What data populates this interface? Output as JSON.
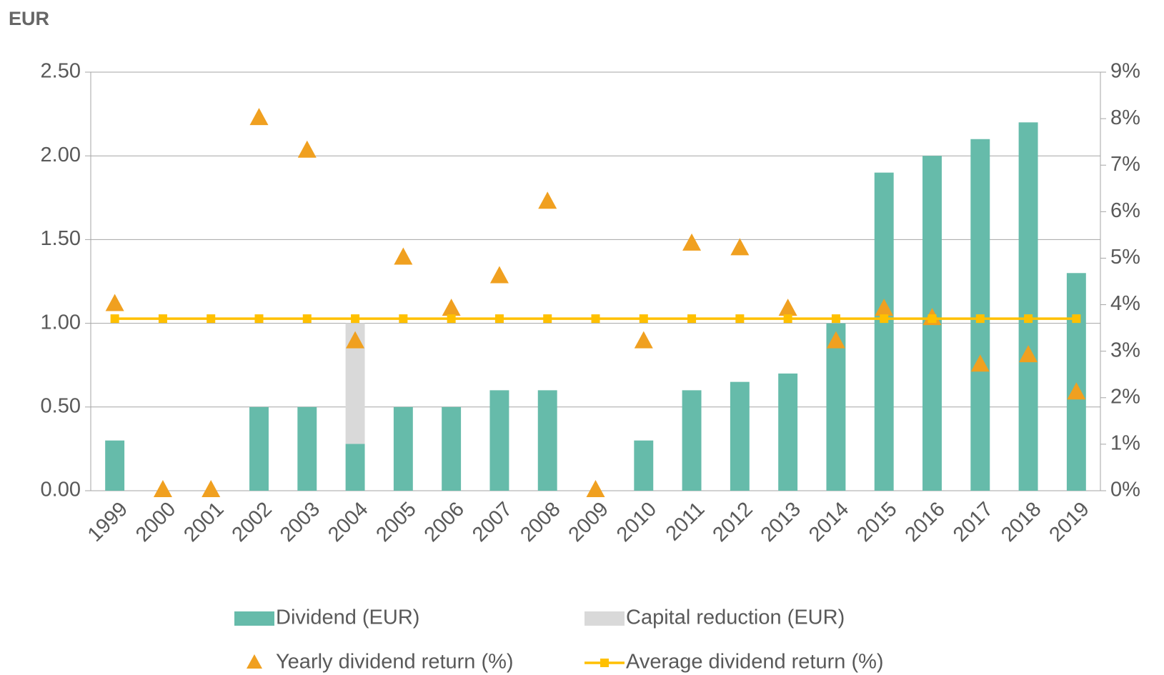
{
  "chart_data": {
    "type": "bar",
    "y_unit_label": "EUR",
    "categories": [
      "1999",
      "2000",
      "2001",
      "2002",
      "2003",
      "2004",
      "2005",
      "2006",
      "2007",
      "2008",
      "2009",
      "2010",
      "2011",
      "2012",
      "2013",
      "2014",
      "2015",
      "2016",
      "2017",
      "2018",
      "2019"
    ],
    "series": [
      {
        "name": "Dividend (EUR)",
        "type": "bar",
        "color": "#66bbaa",
        "values": [
          0.3,
          0,
          0,
          0.5,
          0.5,
          0.28,
          0.5,
          0.5,
          0.6,
          0.6,
          0,
          0.3,
          0.6,
          0.65,
          0.7,
          1.0,
          1.9,
          2.0,
          2.1,
          2.2,
          1.3
        ]
      },
      {
        "name": "Capital reduction (EUR)",
        "type": "bar",
        "color": "#d9d9d9",
        "values": [
          null,
          null,
          null,
          null,
          null,
          0.72,
          null,
          null,
          null,
          null,
          null,
          null,
          null,
          null,
          null,
          null,
          null,
          null,
          null,
          null,
          null
        ]
      },
      {
        "name": "Yearly dividend return (%)",
        "type": "scatter",
        "axis": "y2",
        "color": "#f0a020",
        "values": [
          4.0,
          0,
          0,
          8.0,
          7.3,
          3.2,
          5.0,
          3.9,
          4.6,
          6.2,
          0,
          3.2,
          5.3,
          5.2,
          3.9,
          3.2,
          3.9,
          3.7,
          2.7,
          2.9,
          2.1
        ]
      },
      {
        "name": "Average dividend return (%)",
        "type": "line",
        "axis": "y2",
        "color": "#ffc000",
        "values": [
          3.7,
          3.7,
          3.7,
          3.7,
          3.7,
          3.7,
          3.7,
          3.7,
          3.7,
          3.7,
          3.7,
          3.7,
          3.7,
          3.7,
          3.7,
          3.7,
          3.7,
          3.7,
          3.7,
          3.7,
          3.7
        ]
      }
    ],
    "ylim": [
      0,
      2.5
    ],
    "yticks": [
      {
        "value": 0,
        "label": "0.00"
      },
      {
        "value": 0.5,
        "label": "0.50"
      },
      {
        "value": 1,
        "label": "1.00"
      },
      {
        "value": 1.5,
        "label": "1.50"
      },
      {
        "value": 2,
        "label": "2.00"
      },
      {
        "value": 2.5,
        "label": "2.50"
      }
    ],
    "y2lim": [
      0,
      9
    ],
    "y2ticks": [
      {
        "value": 0,
        "label": "0%"
      },
      {
        "value": 1,
        "label": "1%"
      },
      {
        "value": 2,
        "label": "2%"
      },
      {
        "value": 3,
        "label": "3%"
      },
      {
        "value": 4,
        "label": "4%"
      },
      {
        "value": 5,
        "label": "5%"
      },
      {
        "value": 6,
        "label": "6%"
      },
      {
        "value": 7,
        "label": "7%"
      },
      {
        "value": 8,
        "label": "8%"
      },
      {
        "value": 9,
        "label": "9%"
      }
    ],
    "grid": true
  }
}
